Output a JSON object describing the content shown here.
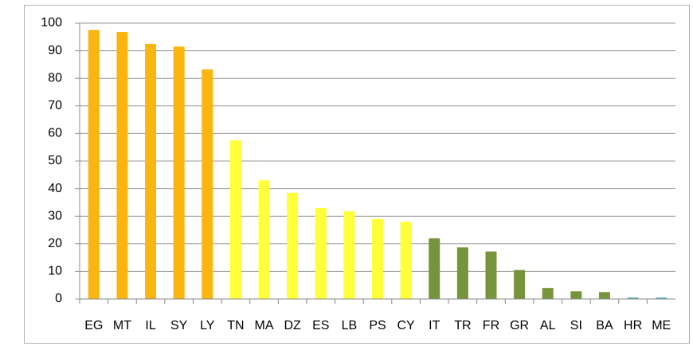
{
  "chart_data": {
    "type": "bar",
    "categories": [
      "EG",
      "MT",
      "IL",
      "SY",
      "LY",
      "TN",
      "MA",
      "DZ",
      "ES",
      "LB",
      "PS",
      "CY",
      "IT",
      "TR",
      "FR",
      "GR",
      "AL",
      "SI",
      "BA",
      "HR",
      "ME"
    ],
    "values": [
      97.5,
      96.8,
      92.5,
      91.5,
      83.2,
      57.5,
      43,
      38.5,
      33,
      31.8,
      29,
      28,
      22,
      18.7,
      17.2,
      10.5,
      4,
      2.8,
      2.5,
      0.5,
      0.5
    ],
    "colors": [
      "#fbb50f",
      "#fbb50f",
      "#fbb50f",
      "#fbb50f",
      "#fbb50f",
      "#ffff3a",
      "#ffff3a",
      "#ffff3a",
      "#ffff3a",
      "#ffff3a",
      "#ffff3a",
      "#ffff3a",
      "#77933c",
      "#77933c",
      "#77933c",
      "#77933c",
      "#77933c",
      "#77933c",
      "#77933c",
      "#4bacc6",
      "#4bacc6"
    ],
    "ylim": [
      0,
      100
    ],
    "yticks": [
      0,
      10,
      20,
      30,
      40,
      50,
      60,
      70,
      80,
      90,
      100
    ],
    "grid": true
  }
}
